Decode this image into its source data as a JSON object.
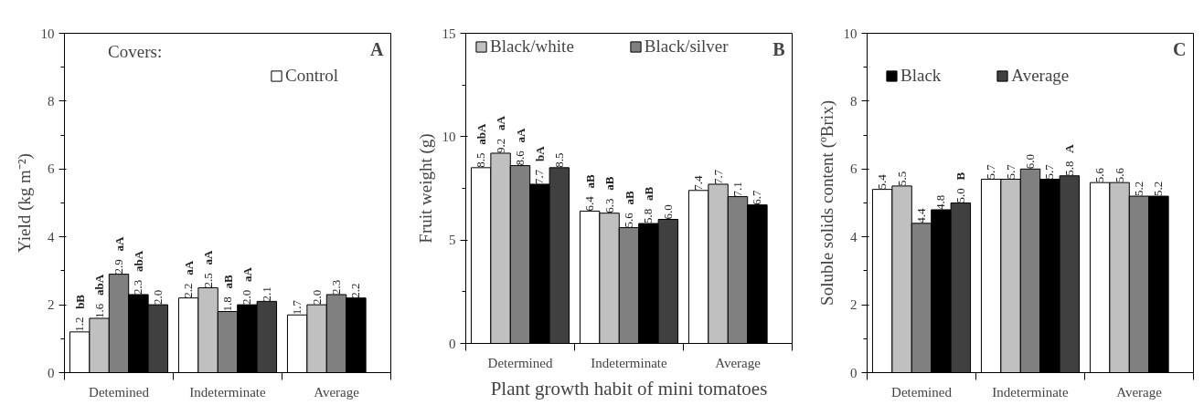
{
  "chart_data": [
    {
      "type": "bar",
      "ylabel": "Yield (kg m⁻²)",
      "categories": [
        "Detemined",
        "Indeterminate",
        "Average"
      ],
      "ylim": [
        0,
        10
      ],
      "yticks": [
        0,
        2,
        4,
        6,
        8,
        10
      ],
      "legend": "top",
      "legend_title": "Covers:",
      "annotations": [
        "A"
      ],
      "series": [
        {
          "name": "Control",
          "color": "#ffffff",
          "values": [
            1.2,
            2.2,
            1.7
          ],
          "value_labels": [
            "1.2 bB",
            "2.2 aA",
            "1.7"
          ]
        },
        {
          "color": "#c0c0c0",
          "values": [
            1.6,
            2.5,
            2.0
          ],
          "value_labels": [
            "1.6 abA",
            "2.5 aA",
            "2.0"
          ]
        },
        {
          "color": "#808080",
          "values": [
            2.9,
            1.8,
            2.3
          ],
          "value_labels": [
            "2.9 aA",
            "1.8 aB",
            "2.3"
          ]
        },
        {
          "color": "#000000",
          "values": [
            2.3,
            2.0,
            2.2
          ],
          "value_labels": [
            "2.3 abA",
            "2.0 aA",
            "2.2"
          ]
        },
        {
          "color": "#404040",
          "values": [
            2.0,
            2.1,
            null
          ],
          "value_labels": [
            "2.0",
            "2.1",
            null
          ]
        }
      ]
    },
    {
      "type": "bar",
      "ylabel": "Fruit weight (g)",
      "xlabel": "Plant growth habit of mini tomatoes",
      "categories": [
        "Determined",
        "Indeterminate",
        "Average"
      ],
      "ylim": [
        0,
        15
      ],
      "yticks": [
        0,
        5,
        10,
        15
      ],
      "legend": "top",
      "annotations": [
        "B"
      ],
      "series": [
        {
          "color": "#ffffff",
          "values": [
            8.5,
            6.4,
            7.4
          ],
          "value_labels": [
            "8.5 abA",
            "6.4 aB",
            "7.4"
          ]
        },
        {
          "name": "Black/white",
          "color": "#c0c0c0",
          "values": [
            9.2,
            6.3,
            7.7
          ],
          "value_labels": [
            "9.2 aA",
            "6.3 aB",
            "7.7"
          ]
        },
        {
          "name": "Black/silver",
          "color": "#808080",
          "values": [
            8.6,
            5.6,
            7.1
          ],
          "value_labels": [
            "8.6 aA",
            "5.6 aB",
            "7.1"
          ]
        },
        {
          "color": "#000000",
          "values": [
            7.7,
            5.8,
            6.7
          ],
          "value_labels": [
            "7.7 bA",
            "5.8 aB",
            "6.7"
          ]
        },
        {
          "color": "#404040",
          "values": [
            8.5,
            6.0,
            null
          ],
          "value_labels": [
            "8.5",
            "6.0",
            null
          ]
        }
      ]
    },
    {
      "type": "bar",
      "ylabel": "Soluble solids content (ºBrix)",
      "categories": [
        "Detemined",
        "Indeterminate",
        "Average"
      ],
      "ylim": [
        0,
        10
      ],
      "yticks": [
        0,
        2,
        4,
        6,
        8,
        10
      ],
      "legend": "top",
      "annotations": [
        "C"
      ],
      "series": [
        {
          "color": "#ffffff",
          "values": [
            5.4,
            5.7,
            5.6
          ],
          "value_labels": [
            "5.4",
            "5.7",
            "5.6"
          ]
        },
        {
          "color": "#c0c0c0",
          "values": [
            5.5,
            5.7,
            5.6
          ],
          "value_labels": [
            "5.5",
            "5.7",
            "5.6"
          ]
        },
        {
          "color": "#808080",
          "values": [
            4.4,
            6.0,
            5.2
          ],
          "value_labels": [
            "4.4",
            "6.0",
            "5.2"
          ]
        },
        {
          "name": "Black",
          "color": "#000000",
          "values": [
            4.8,
            5.7,
            5.2
          ],
          "value_labels": [
            "4.8",
            "5.7",
            "5.2"
          ]
        },
        {
          "name": "Average",
          "color": "#404040",
          "values": [
            5.0,
            5.8,
            null
          ],
          "value_labels": [
            "5.0 B",
            "5.8 A",
            null
          ]
        }
      ]
    }
  ]
}
